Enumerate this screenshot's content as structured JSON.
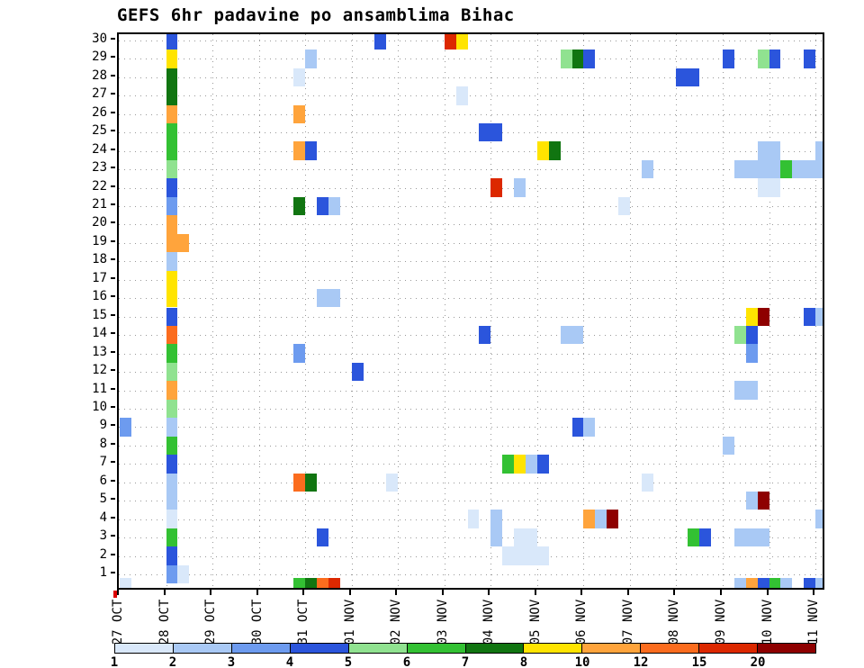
{
  "page": {
    "background": "#ffffff"
  },
  "chart_data": {
    "type": "heatmap",
    "title": "GEFS 6hr padavine po ansamblima Bihac",
    "subtitle": "",
    "x_axis": {
      "tick_labels": [
        "27 OCT",
        "28 OCT",
        "29 OCT",
        "30 OCT",
        "31 OCT",
        "01 NOV",
        "02 NOV",
        "03 NOV",
        "04 NOV",
        "05 NOV",
        "06 NOV",
        "07 NOV",
        "08 NOV",
        "09 NOV",
        "10 NOV",
        "11 NOV"
      ],
      "steps_per_day": 4,
      "step_hours": 6,
      "n_steps": 61
    },
    "y_axis": {
      "tick_labels": [
        "1",
        "2",
        "3",
        "4",
        "5",
        "6",
        "7",
        "8",
        "9",
        "10",
        "11",
        "12",
        "13",
        "14",
        "15",
        "16",
        "17",
        "18",
        "19",
        "20",
        "21",
        "22",
        "23",
        "24",
        "25",
        "26",
        "27",
        "28",
        "29",
        "30"
      ],
      "meaning": "ensemble members",
      "extra_bottom_row": true
    },
    "grid": {
      "horizontal": true,
      "vertical": true,
      "style": "dotted"
    },
    "palette": {
      "bin_labels": [
        "1",
        "2",
        "3",
        "4",
        "5",
        "6",
        "7",
        "8",
        "10",
        "12",
        "15",
        "20"
      ],
      "colors": [
        "#D9E8FA",
        "#A9C9F5",
        "#6D9BEF",
        "#2B55DC",
        "#90E290",
        "#33C133",
        "#117511",
        "#FFE400",
        "#FFA43C",
        "#FB6C1E",
        "#DC2800",
        "#8E0000"
      ],
      "units": "mm / 6hr"
    },
    "cells_format": "[time_step, member_row(0=bottom strip), color_bin_index, width_in_steps]",
    "cells": [
      [
        0,
        9,
        2,
        1
      ],
      [
        0,
        0,
        0,
        1
      ],
      [
        4,
        30,
        3,
        1
      ],
      [
        4,
        29,
        7,
        1
      ],
      [
        4,
        28,
        6,
        1
      ],
      [
        4,
        27,
        6,
        1
      ],
      [
        4,
        26,
        8,
        1
      ],
      [
        4,
        25,
        5,
        1
      ],
      [
        4,
        24,
        5,
        1
      ],
      [
        4,
        23,
        4,
        1
      ],
      [
        4,
        22,
        3,
        1
      ],
      [
        4,
        21,
        2,
        1
      ],
      [
        4,
        20,
        8,
        1
      ],
      [
        4,
        19,
        8,
        2
      ],
      [
        4,
        18,
        1,
        1
      ],
      [
        4,
        17,
        7,
        1
      ],
      [
        4,
        16,
        7,
        1
      ],
      [
        4,
        15,
        3,
        1
      ],
      [
        4,
        14,
        9,
        1
      ],
      [
        4,
        13,
        5,
        1
      ],
      [
        4,
        12,
        4,
        1
      ],
      [
        4,
        11,
        8,
        1
      ],
      [
        4,
        10,
        4,
        1
      ],
      [
        4,
        9,
        1,
        1
      ],
      [
        4,
        8,
        5,
        1
      ],
      [
        4,
        7,
        3,
        1
      ],
      [
        4,
        6,
        1,
        1
      ],
      [
        4,
        5,
        1,
        1
      ],
      [
        4,
        4,
        0,
        1
      ],
      [
        4,
        3,
        5,
        1
      ],
      [
        4,
        2,
        3,
        1
      ],
      [
        4,
        1,
        2,
        1
      ],
      [
        5,
        1,
        0,
        1
      ],
      [
        15,
        28,
        0,
        1
      ],
      [
        16,
        29,
        1,
        1
      ],
      [
        15,
        26,
        8,
        1
      ],
      [
        15,
        24,
        8,
        1
      ],
      [
        16,
        24,
        3,
        1
      ],
      [
        15,
        21,
        6,
        1
      ],
      [
        17,
        21,
        3,
        1
      ],
      [
        18,
        21,
        1,
        1
      ],
      [
        17,
        16,
        1,
        2
      ],
      [
        15,
        13,
        2,
        1
      ],
      [
        15,
        6,
        9,
        1
      ],
      [
        16,
        6,
        6,
        1
      ],
      [
        17,
        3,
        3,
        1
      ],
      [
        15,
        0,
        5,
        1
      ],
      [
        16,
        0,
        6,
        1
      ],
      [
        17,
        0,
        9,
        1
      ],
      [
        18,
        0,
        10,
        1
      ],
      [
        22,
        30,
        3,
        1
      ],
      [
        20,
        12,
        3,
        1
      ],
      [
        23,
        6,
        0,
        1
      ],
      [
        28,
        30,
        10,
        1
      ],
      [
        29,
        30,
        7,
        1
      ],
      [
        29,
        27,
        0,
        1
      ],
      [
        30,
        4,
        0,
        1
      ],
      [
        31,
        25,
        3,
        2
      ],
      [
        32,
        22,
        10,
        1
      ],
      [
        34,
        22,
        1,
        1
      ],
      [
        31,
        14,
        3,
        1
      ],
      [
        33,
        7,
        5,
        1
      ],
      [
        34,
        7,
        7,
        1
      ],
      [
        35,
        7,
        1,
        1
      ],
      [
        36,
        7,
        3,
        1
      ],
      [
        32,
        4,
        1,
        1
      ],
      [
        32,
        3,
        1,
        1
      ],
      [
        34,
        3,
        0,
        2
      ],
      [
        33,
        2,
        0,
        4
      ],
      [
        36,
        24,
        7,
        1
      ],
      [
        37,
        24,
        6,
        1
      ],
      [
        38,
        14,
        1,
        2
      ],
      [
        38,
        29,
        4,
        1
      ],
      [
        39,
        29,
        6,
        1
      ],
      [
        40,
        29,
        3,
        1
      ],
      [
        39,
        9,
        3,
        1
      ],
      [
        40,
        9,
        1,
        1
      ],
      [
        40,
        4,
        8,
        1
      ],
      [
        41,
        4,
        1,
        1
      ],
      [
        42,
        4,
        11,
        1
      ],
      [
        43,
        21,
        0,
        1
      ],
      [
        45,
        23,
        1,
        1
      ],
      [
        45,
        6,
        0,
        1
      ],
      [
        48,
        28,
        3,
        2
      ],
      [
        49,
        3,
        5,
        1
      ],
      [
        50,
        3,
        3,
        1
      ],
      [
        52,
        29,
        3,
        1
      ],
      [
        52,
        8,
        1,
        1
      ],
      [
        53,
        14,
        4,
        1
      ],
      [
        54,
        14,
        3,
        1
      ],
      [
        54,
        13,
        2,
        1
      ],
      [
        53,
        11,
        1,
        2
      ],
      [
        54,
        15,
        7,
        1
      ],
      [
        55,
        15,
        11,
        1
      ],
      [
        53,
        3,
        1,
        3
      ],
      [
        54,
        5,
        1,
        1
      ],
      [
        55,
        5,
        11,
        1
      ],
      [
        53,
        0,
        1,
        1
      ],
      [
        54,
        0,
        8,
        1
      ],
      [
        55,
        0,
        3,
        1
      ],
      [
        56,
        0,
        5,
        1
      ],
      [
        57,
        0,
        1,
        1
      ],
      [
        55,
        29,
        4,
        1
      ],
      [
        56,
        29,
        3,
        1
      ],
      [
        59,
        29,
        3,
        1
      ],
      [
        55,
        24,
        1,
        2
      ],
      [
        60,
        24,
        1,
        1
      ],
      [
        53,
        23,
        1,
        4
      ],
      [
        57,
        23,
        5,
        1
      ],
      [
        58,
        23,
        1,
        3
      ],
      [
        55,
        22,
        0,
        2
      ],
      [
        59,
        15,
        3,
        1
      ],
      [
        60,
        15,
        1,
        1
      ],
      [
        60,
        4,
        1,
        1
      ],
      [
        59,
        0,
        3,
        1
      ],
      [
        60,
        0,
        1,
        2
      ]
    ]
  }
}
